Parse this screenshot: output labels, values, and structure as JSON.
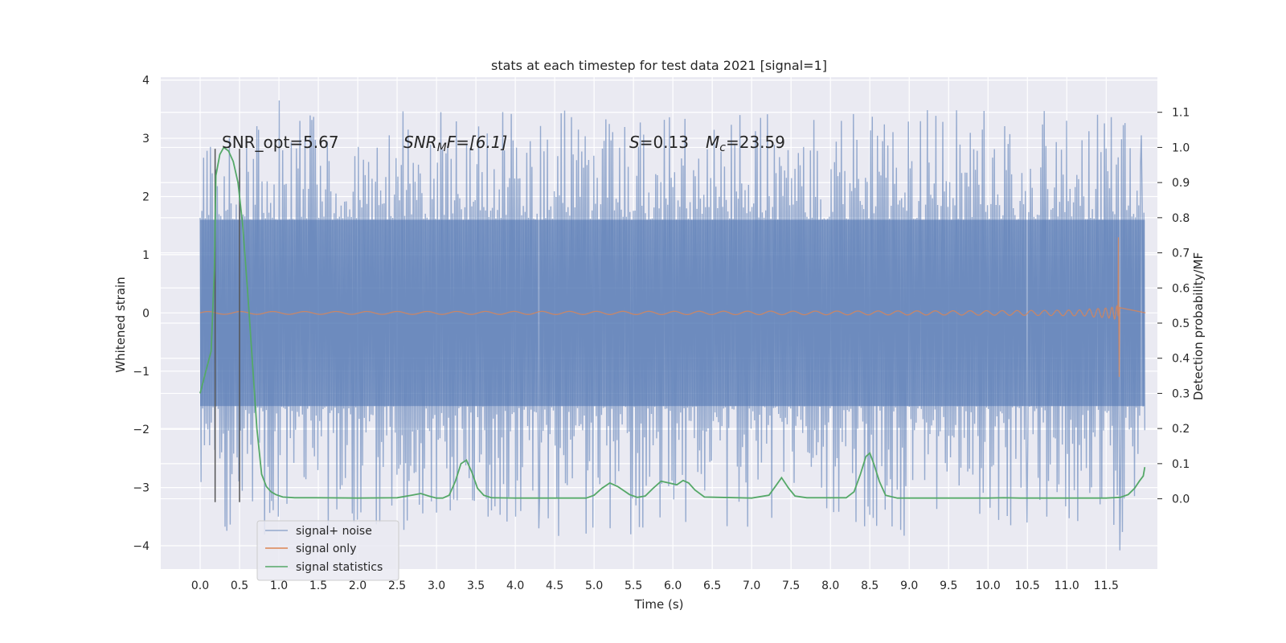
{
  "chart_data": {
    "type": "line",
    "title": "stats at each timestep for test data 2021 [signal=1]",
    "xlabel": "Time (s)",
    "ylabel": "Whitened strain",
    "ylabel_right": "Detection probability/MF",
    "xlim": [
      -0.5,
      12.15
    ],
    "ylim": [
      -4.4,
      4.05
    ],
    "ylim_right": [
      -0.2,
      1.2
    ],
    "x_ticks": [
      0.0,
      0.5,
      1.0,
      1.5,
      2.0,
      2.5,
      3.0,
      3.5,
      4.0,
      4.5,
      5.0,
      5.5,
      6.0,
      6.5,
      7.0,
      7.5,
      8.0,
      8.5,
      9.0,
      9.5,
      10.0,
      10.5,
      11.0,
      11.5
    ],
    "x_tick_labels": [
      "0.0",
      "0.5",
      "1.0",
      "1.5",
      "2.0",
      "2.5",
      "3.0",
      "3.5",
      "4.0",
      "4.5",
      "5.0",
      "5.5",
      "6.0",
      "6.5",
      "7.0",
      "7.5",
      "8.0",
      "8.5",
      "9.0",
      "9.5",
      "10.0",
      "10.5",
      "11.0",
      "11.5"
    ],
    "y_ticks": [
      -4,
      -3,
      -2,
      -1,
      0,
      1,
      2,
      3,
      4
    ],
    "y_tick_labels": [
      "−4",
      "−3",
      "−2",
      "−1",
      "0",
      "1",
      "2",
      "3",
      "4"
    ],
    "y_right_ticks": [
      0.0,
      0.1,
      0.2,
      0.3,
      0.4,
      0.5,
      0.6,
      0.7,
      0.8,
      0.9,
      1.0,
      1.1
    ],
    "y_right_tick_labels": [
      "0.0",
      "0.1",
      "0.2",
      "0.3",
      "0.4",
      "0.5",
      "0.6",
      "0.7",
      "0.8",
      "0.9",
      "1.0",
      "1.1"
    ],
    "grid": true,
    "legend_position": "lower-left",
    "annotations": {
      "snr_opt": "SNR_opt=5.67",
      "snr_mf_base": "SNR",
      "snr_mf_sub": "M",
      "snr_mf_rest": "F=[6.1]",
      "s_sym": "S",
      "s_val": "=0.13",
      "mc_sym": "M",
      "mc_sub": "c",
      "mc_val": "=23.59"
    },
    "vlines": [
      0.19,
      0.5
    ],
    "series": [
      {
        "name": "signal+ noise",
        "color": "#4c72b0",
        "alpha": 0.55,
        "x_range": [
          0.0,
          11.99
        ],
        "envelope": {
          "typical_low": -1.6,
          "typical_high": 1.6,
          "spike_min": -4.08,
          "spike_max": 3.65
        },
        "notable_spikes": [
          {
            "x": 1.0,
            "y": 3.65
          },
          {
            "x": 3.05,
            "y": 3.45
          },
          {
            "x": 6.85,
            "y": 3.4
          },
          {
            "x": 11.0,
            "y": 3.3
          },
          {
            "x": 11.95,
            "y": 3.05
          },
          {
            "x": 4.3,
            "y": -3.7
          },
          {
            "x": 11.67,
            "y": -4.08
          },
          {
            "x": 10.5,
            "y": -3.6
          },
          {
            "x": 3.65,
            "y": -3.5
          },
          {
            "x": 4.0,
            "y": -3.5
          },
          {
            "x": 10.75,
            "y": -3.5
          },
          {
            "x": 0.25,
            "y": -2.5
          }
        ]
      },
      {
        "name": "signal only",
        "color": "#dd8452",
        "x_range": [
          0.0,
          11.67
        ],
        "chirp": {
          "t_merger": 11.67,
          "peak_amplitude": 1.3,
          "min_amplitude": -1.1
        }
      },
      {
        "name": "signal statistics",
        "color": "#55a868",
        "axis": "right",
        "x": [
          0.0,
          0.08,
          0.14,
          0.18,
          0.2,
          0.25,
          0.3,
          0.36,
          0.42,
          0.48,
          0.54,
          0.6,
          0.66,
          0.72,
          0.78,
          0.84,
          0.9,
          0.96,
          1.05,
          1.2,
          1.5,
          2.0,
          2.5,
          2.68,
          2.8,
          2.9,
          3.0,
          3.08,
          3.16,
          3.24,
          3.31,
          3.38,
          3.45,
          3.52,
          3.6,
          3.7,
          4.0,
          4.5,
          4.9,
          5.0,
          5.1,
          5.2,
          5.3,
          5.45,
          5.55,
          5.65,
          5.75,
          5.85,
          5.95,
          6.05,
          6.13,
          6.2,
          6.28,
          6.4,
          7.0,
          7.22,
          7.3,
          7.38,
          7.47,
          7.55,
          7.7,
          8.2,
          8.3,
          8.38,
          8.45,
          8.5,
          8.55,
          8.62,
          8.7,
          8.85,
          9.5,
          10.0,
          10.2,
          10.4,
          11.0,
          11.5,
          11.68,
          11.78,
          11.86,
          11.92,
          11.97,
          11.99
        ],
        "y": [
          0.3,
          0.37,
          0.42,
          0.65,
          0.92,
          0.98,
          1.0,
          0.99,
          0.96,
          0.9,
          0.78,
          0.6,
          0.4,
          0.2,
          0.07,
          0.035,
          0.02,
          0.012,
          0.005,
          0.003,
          0.003,
          0.002,
          0.003,
          0.01,
          0.015,
          0.008,
          0.002,
          0.002,
          0.01,
          0.05,
          0.1,
          0.11,
          0.075,
          0.03,
          0.01,
          0.003,
          0.002,
          0.002,
          0.002,
          0.01,
          0.03,
          0.045,
          0.035,
          0.012,
          0.004,
          0.008,
          0.03,
          0.05,
          0.045,
          0.04,
          0.052,
          0.045,
          0.025,
          0.005,
          0.002,
          0.01,
          0.035,
          0.06,
          0.03,
          0.008,
          0.003,
          0.003,
          0.02,
          0.07,
          0.12,
          0.13,
          0.1,
          0.05,
          0.01,
          0.002,
          0.002,
          0.002,
          0.003,
          0.002,
          0.002,
          0.002,
          0.004,
          0.012,
          0.03,
          0.05,
          0.065,
          0.09
        ]
      }
    ]
  }
}
